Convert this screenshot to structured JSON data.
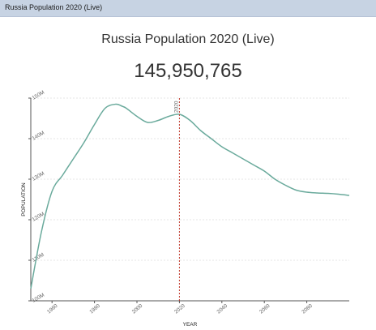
{
  "header": {
    "title": "Russia Population 2020 (Live)"
  },
  "main": {
    "title": "Russia Population 2020 (Live)",
    "live_population": "145,950,765"
  },
  "chart_data": {
    "type": "line",
    "title": "Russia Population 2020 (Live)",
    "xlabel": "YEAR",
    "ylabel": "POPULATION",
    "xlim": [
      1950,
      2100
    ],
    "ylim": [
      100,
      150
    ],
    "y_unit": "M",
    "x_ticks": [
      1960,
      1980,
      2000,
      2020,
      2040,
      2060,
      2080
    ],
    "y_ticks": [
      100,
      110,
      120,
      130,
      140,
      150
    ],
    "y_tick_labels": [
      "100M",
      "110M",
      "120M",
      "130M",
      "140M",
      "150M"
    ],
    "grid": true,
    "marker": {
      "x": 2020,
      "label": "2020",
      "color": "#c0392b"
    },
    "series": [
      {
        "color": "#6aaa9c",
        "x": [
          1950,
          1955,
          1960,
          1965,
          1970,
          1975,
          1980,
          1985,
          1990,
          1993,
          1995,
          2000,
          2005,
          2010,
          2015,
          2020,
          2025,
          2030,
          2035,
          2040,
          2045,
          2050,
          2055,
          2060,
          2065,
          2070,
          2075,
          2080,
          2085,
          2090,
          2095,
          2100
        ],
        "y": [
          103,
          117,
          127,
          131,
          135,
          139,
          143.5,
          147.5,
          148.5,
          148,
          147.5,
          145.5,
          144,
          144.5,
          145.5,
          146,
          144.5,
          142,
          140,
          138,
          136.5,
          135,
          133.5,
          132,
          130,
          128.5,
          127.3,
          126.8,
          126.6,
          126.5,
          126.3,
          126
        ]
      }
    ]
  }
}
